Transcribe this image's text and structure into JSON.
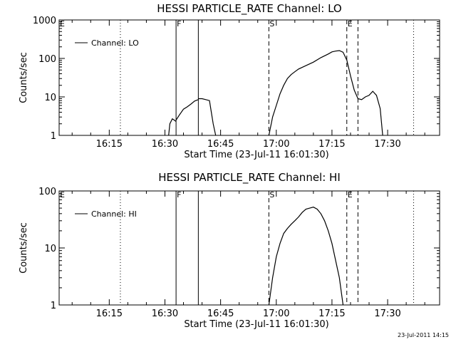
{
  "footer": "23-Jul-2011 14:15",
  "chart_data": [
    {
      "type": "line",
      "title": "HESSI PARTICLE_RATE Channel: LO",
      "xlabel": "Start Time (23-Jul-11 16:01:30)",
      "ylabel": "Counts/sec",
      "yscale": "log",
      "ylim": [
        1,
        1000
      ],
      "xlim": [
        "16:01:30",
        "17:44:00"
      ],
      "x_ticks": [
        "16:15",
        "16:30",
        "16:45",
        "17:00",
        "17:15",
        "17:30"
      ],
      "y_ticks": [
        "1",
        "10",
        "100",
        "1000"
      ],
      "legend": {
        "position": "top-left",
        "entries": [
          "Channel: LO"
        ]
      },
      "markers": [
        {
          "label": "E",
          "time": "16:01:30",
          "style": "solid"
        },
        {
          "label": "F",
          "time": "16:33:00",
          "style": "solid"
        },
        {
          "label": "",
          "time": "16:39:00",
          "style": "solid"
        },
        {
          "label": "S",
          "time": "16:58:00",
          "style": "dashed"
        },
        {
          "label": "E",
          "time": "17:19:00",
          "style": "dashed"
        },
        {
          "label": "",
          "time": "17:22:00",
          "style": "dashed"
        },
        {
          "label": "",
          "time": "16:18:00",
          "style": "dotted"
        },
        {
          "label": "",
          "time": "17:37:00",
          "style": "dotted"
        }
      ],
      "series": [
        {
          "name": "Channel: LO",
          "segments": [
            {
              "x": [
                "16:31:00",
                "16:31:20",
                "16:32:00",
                "16:32:30",
                "16:33:00"
              ],
              "y": [
                1,
                2.0,
                2.7,
                2.5,
                2.3
              ]
            },
            {
              "x": [
                "16:33:00",
                "16:34:00",
                "16:35:00",
                "16:36:00",
                "16:37:00",
                "16:38:00",
                "16:39:00"
              ],
              "y": [
                2.5,
                3.5,
                4.8,
                5.5,
                6.5,
                7.8,
                8.5
              ]
            },
            {
              "x": [
                "16:39:00",
                "16:40:00",
                "16:41:00",
                "16:42:00",
                "16:42:30",
                "16:43:00",
                "16:43:40"
              ],
              "y": [
                9,
                9,
                8.5,
                8,
                4,
                2,
                1
              ]
            },
            {
              "x": [
                "16:58:00",
                "16:59:00",
                "17:00:00",
                "17:01:00",
                "17:02:00",
                "17:03:00",
                "17:04:00",
                "17:05:00",
                "17:06:00",
                "17:08:00",
                "17:10:00",
                "17:12:00",
                "17:14:00",
                "17:15:00",
                "17:16:00",
                "17:17:00",
                "17:18:00",
                "17:19:00",
                "17:20:00",
                "17:21:00",
                "17:22:00",
                "17:23:00",
                "17:24:00",
                "17:25:00",
                "17:26:00",
                "17:27:00",
                "17:28:00",
                "17:28:40"
              ],
              "y": [
                1,
                3,
                6,
                12,
                20,
                30,
                38,
                45,
                53,
                65,
                80,
                105,
                130,
                148,
                155,
                160,
                145,
                90,
                35,
                15,
                9,
                8.5,
                10,
                11,
                14,
                11,
                5,
                1
              ]
            }
          ]
        }
      ]
    },
    {
      "type": "line",
      "title": "HESSI PARTICLE_RATE Channel: HI",
      "xlabel": "Start Time (23-Jul-11 16:01:30)",
      "ylabel": "Counts/sec",
      "yscale": "log",
      "ylim": [
        1,
        100
      ],
      "xlim": [
        "16:01:30",
        "17:44:00"
      ],
      "x_ticks": [
        "16:15",
        "16:30",
        "16:45",
        "17:00",
        "17:15",
        "17:30"
      ],
      "y_ticks": [
        "1",
        "10",
        "100"
      ],
      "legend": {
        "position": "top-left",
        "entries": [
          "Channel: HI"
        ]
      },
      "markers": [
        {
          "label": "E",
          "time": "16:01:30",
          "style": "solid"
        },
        {
          "label": "F",
          "time": "16:33:00",
          "style": "solid"
        },
        {
          "label": "",
          "time": "16:39:00",
          "style": "solid"
        },
        {
          "label": "S",
          "time": "16:58:00",
          "style": "dashed"
        },
        {
          "label": "E",
          "time": "17:19:00",
          "style": "dashed"
        },
        {
          "label": "",
          "time": "17:22:00",
          "style": "dashed"
        },
        {
          "label": "",
          "time": "16:18:00",
          "style": "dotted"
        },
        {
          "label": "",
          "time": "17:37:00",
          "style": "dotted"
        }
      ],
      "series": [
        {
          "name": "Channel: HI",
          "segments": [
            {
              "x": [
                "16:58:00",
                "16:59:00",
                "17:00:00",
                "17:01:00",
                "17:02:00",
                "17:03:00",
                "17:04:00",
                "17:05:00",
                "17:06:00",
                "17:07:00",
                "17:08:00",
                "17:09:00",
                "17:10:00",
                "17:11:00",
                "17:12:00",
                "17:13:00",
                "17:14:00",
                "17:15:00",
                "17:16:00",
                "17:17:00",
                "17:18:00"
              ],
              "y": [
                1,
                3,
                7,
                12,
                18,
                22,
                26,
                30,
                35,
                42,
                48,
                50,
                52,
                48,
                40,
                30,
                20,
                12,
                6,
                3,
                1
              ]
            }
          ]
        }
      ]
    }
  ]
}
